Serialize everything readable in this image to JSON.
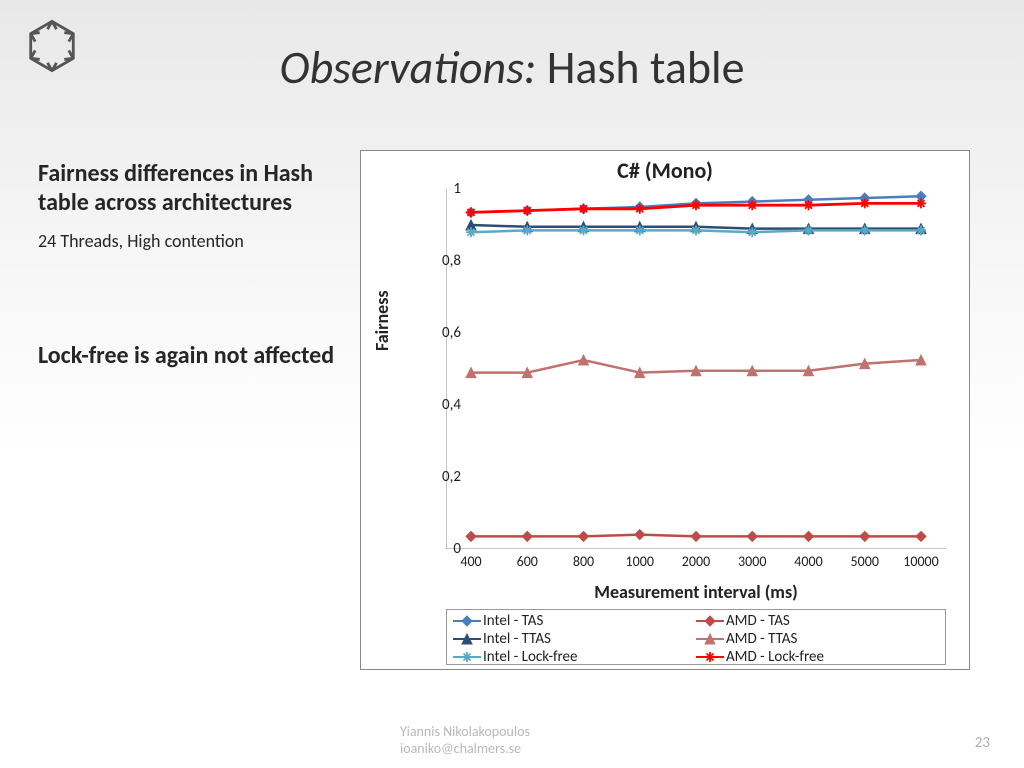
{
  "title_italic": "Observations:",
  "title_plain": " Hash table",
  "heading1": "Fairness differences in Hash table across architectures",
  "sub1": "24 Threads, High contention",
  "heading2": "Lock-free is again not affected",
  "footer_line1": "Yiannis Nikolakopoulos",
  "footer_line2": "ioaniko@chalmers.se",
  "page_num": "23",
  "chart": {
    "title": "C# (Mono)",
    "ylabel": "Fairness",
    "xlabel": "Measurement interval (ms)",
    "ylim": [
      0,
      1
    ],
    "yticks": [
      0,
      0.2,
      0.4,
      0.6,
      0.8,
      1
    ],
    "ytick_labels": [
      "0",
      "0,2",
      "0,4",
      "0,6",
      "0,8",
      "1"
    ],
    "x_categories": [
      "400",
      "600",
      "800",
      "1000",
      "2000",
      "3000",
      "4000",
      "5000",
      "10000"
    ],
    "tick_color": "#555",
    "tick_fontsize": 15,
    "axis_color": "#888",
    "series": [
      {
        "name": "Intel - TAS",
        "color": "#4a7ebb",
        "marker": "diamond",
        "line_width": 2.5,
        "values": [
          0.935,
          0.94,
          0.945,
          0.95,
          0.96,
          0.965,
          0.97,
          0.975,
          0.98
        ]
      },
      {
        "name": "AMD - TAS",
        "color": "#be4b48",
        "marker": "diamond",
        "line_width": 2.5,
        "values": [
          0.035,
          0.035,
          0.035,
          0.04,
          0.035,
          0.035,
          0.035,
          0.035,
          0.035
        ]
      },
      {
        "name": "Intel - TTAS",
        "color": "#2c4d75",
        "marker": "triangle",
        "line_width": 2.5,
        "values": [
          0.9,
          0.895,
          0.895,
          0.895,
          0.895,
          0.89,
          0.89,
          0.89,
          0.89
        ]
      },
      {
        "name": "AMD - TTAS",
        "color": "#c0726e",
        "marker": "triangle",
        "line_width": 2.5,
        "values": [
          0.49,
          0.49,
          0.525,
          0.49,
          0.495,
          0.495,
          0.495,
          0.515,
          0.525
        ]
      },
      {
        "name": "Intel - Lock-free",
        "color": "#5aa9c5",
        "marker": "star",
        "line_width": 2.5,
        "values": [
          0.88,
          0.885,
          0.885,
          0.885,
          0.885,
          0.88,
          0.885,
          0.885,
          0.885
        ]
      },
      {
        "name": "AMD - Lock-free",
        "color": "#ff0000",
        "marker": "star",
        "line_width": 2.8,
        "values": [
          0.935,
          0.94,
          0.945,
          0.945,
          0.955,
          0.955,
          0.955,
          0.96,
          0.96
        ]
      }
    ],
    "legend_order": [
      0,
      1,
      2,
      3,
      4,
      5
    ]
  }
}
